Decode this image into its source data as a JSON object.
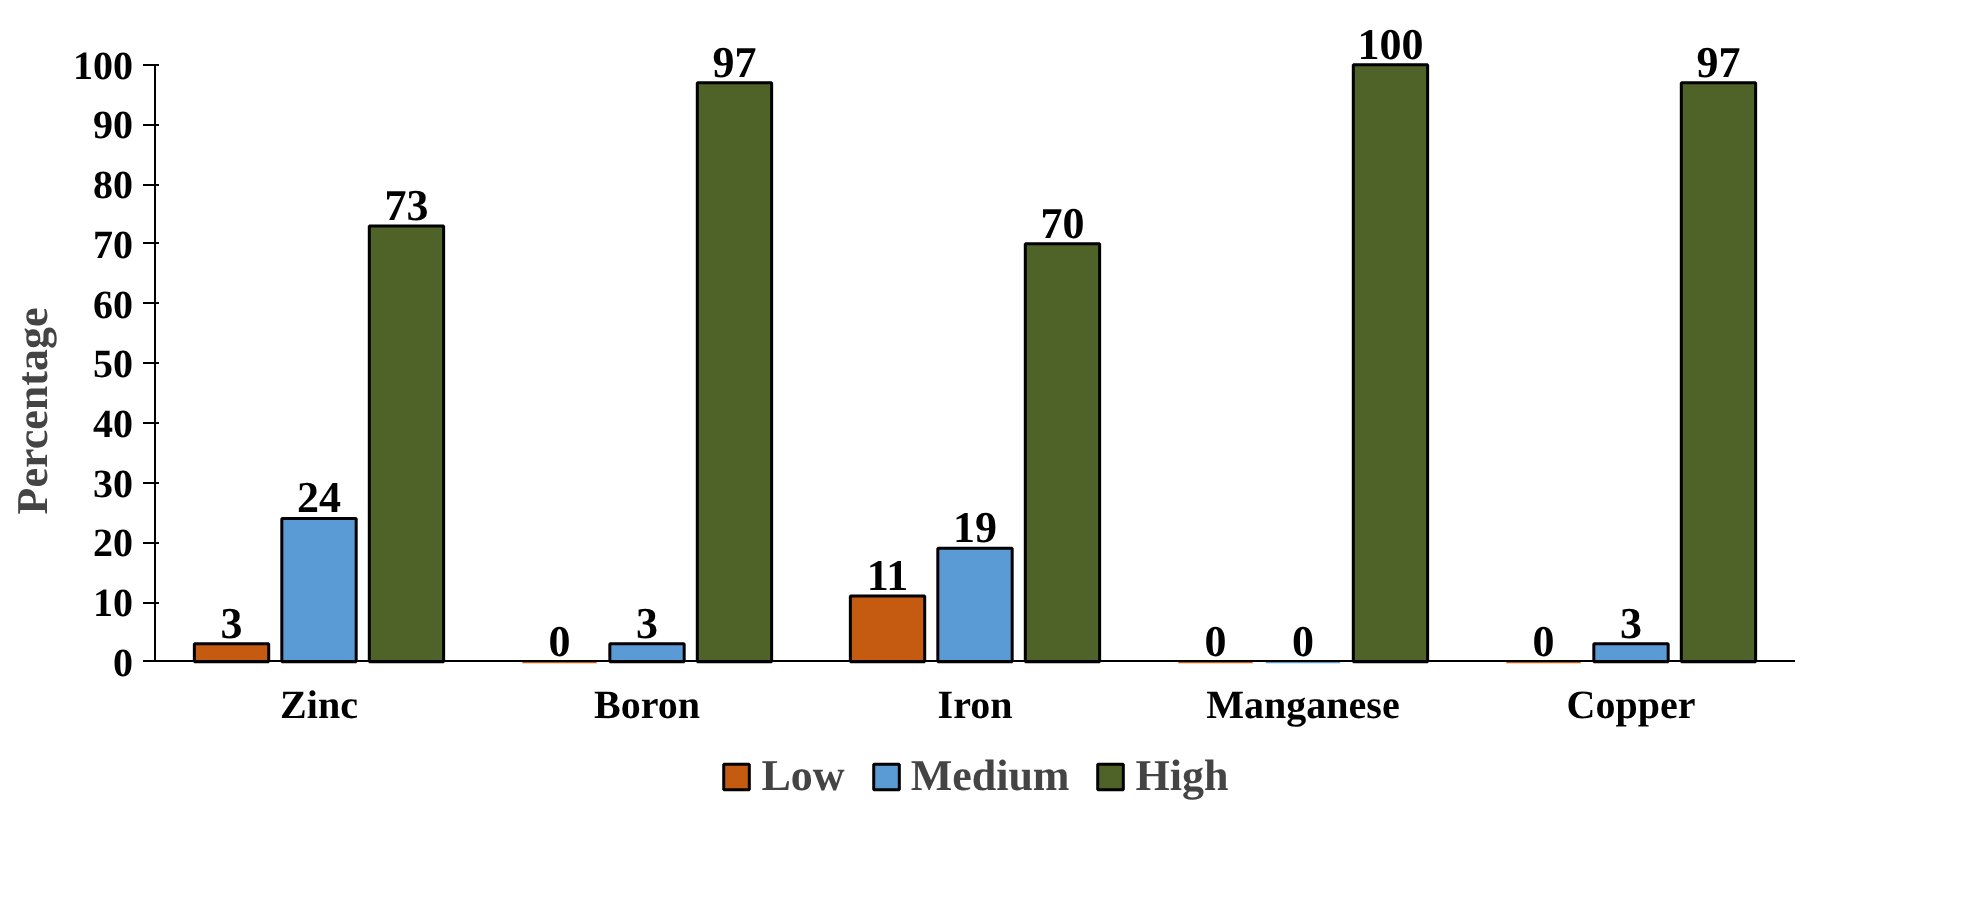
{
  "chart_data": {
    "type": "bar",
    "ylabel": "Percentage",
    "categories": [
      "Zinc",
      "Boron",
      "Iron",
      "Manganese",
      "Copper"
    ],
    "series": [
      {
        "name": "Low",
        "color": "#c55a11",
        "values": [
          3,
          0,
          11,
          0,
          0
        ]
      },
      {
        "name": "Medium",
        "color": "#5b9bd5",
        "values": [
          24,
          3,
          19,
          0,
          3
        ]
      },
      {
        "name": "High",
        "color": "#4f6228",
        "values": [
          73,
          97,
          70,
          100,
          97
        ]
      }
    ],
    "ylim": [
      0,
      100
    ],
    "yticks": [
      0,
      10,
      20,
      30,
      40,
      50,
      60,
      70,
      80,
      90,
      100
    ],
    "data_labels": true,
    "legend": "bottom",
    "grid": false
  }
}
